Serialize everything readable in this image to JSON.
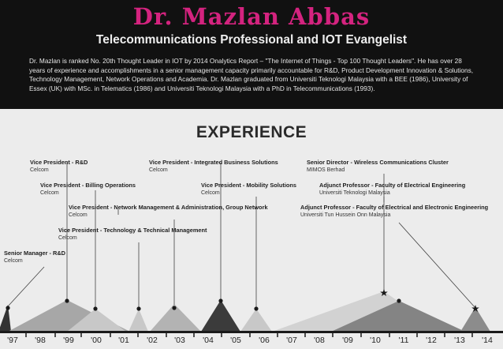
{
  "header": {
    "name": "Dr. Mazlan Abbas",
    "subtitle": "Telecommunications Professional and IOT Evangelist",
    "bio": "Dr. Mazlan is ranked No. 20th Thought Leader in IOT by 2014 Onalytics Report – \"The Internet of Things - Top 100 Thought Leaders\". He has over 28 years of experience and accomplishments in a senior management capacity primarily accountable for R&D, Product Development Innovation & Solutions, Technology Management, Network Operations and Academia. Dr. Mazlan graduated from Universiti Teknologi Malaysia with a BEE (1986), University of Essex (UK) with MSc. in Telematics (1986) and Universiti Teknologi Malaysia with a PhD in Telecommunications (1993)."
  },
  "section": {
    "title": "EXPERIENCE"
  },
  "roles": [
    {
      "title": "Vice President - R&D",
      "org": "Celcom"
    },
    {
      "title": "Vice President - Billing Operations",
      "org": "Celcom"
    },
    {
      "title": "Vice President - Network Management & Administration, Group Network",
      "org": "Celcom"
    },
    {
      "title": "Vice President - Technology & Technical Management",
      "org": "Celcom"
    },
    {
      "title": "Senior Manager - R&D",
      "org": "Celcom"
    },
    {
      "title": "Vice President - Integrated Business Solutions",
      "org": "Celcom"
    },
    {
      "title": "Vice President - Mobility Solutions",
      "org": "Celcom"
    },
    {
      "title": "Senior Director - Wireless Communications Cluster",
      "org": "MIMOS Berhad"
    },
    {
      "title": "Adjunct Professor - Faculty of Electrical Engineering",
      "org": "Universiti Teknologi Malaysia"
    },
    {
      "title": "Adjunct Professor - Faculty of Electrical and Electronic Engineering",
      "org": "Universiti Tun Hussein Onn Malaysia"
    }
  ],
  "timeline": {
    "years": [
      "'97",
      "'98",
      "'99",
      "'00",
      "'01",
      "'02",
      "'03",
      "'04",
      "'05",
      "'06",
      "'07",
      "'08",
      "'09",
      "'10",
      "'11",
      "'12",
      "'13",
      "'14"
    ]
  },
  "colors": {
    "name": "#d4237f",
    "header_bg": "#111111",
    "page_bg": "#ececec"
  }
}
